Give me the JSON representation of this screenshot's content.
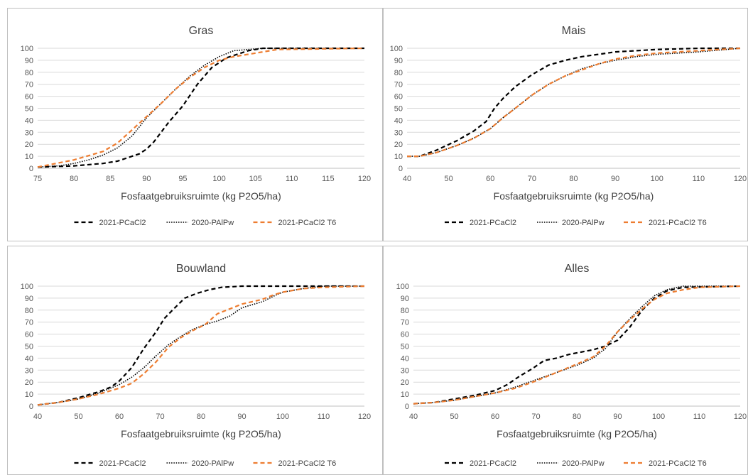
{
  "colors": {
    "pcacl2": "#000000",
    "palpw": "#000000",
    "t6": "#ED7D31"
  },
  "chart_data": [
    {
      "type": "line",
      "title": "Gras",
      "xlabel": "Fosfaatgebruiksruimte (kg P2O5/ha)",
      "xlim": [
        75,
        120
      ],
      "xticks": [
        75,
        80,
        85,
        90,
        95,
        100,
        105,
        110,
        115,
        120
      ],
      "ylim": [
        0,
        100
      ],
      "yticks": [
        0,
        10,
        20,
        30,
        40,
        50,
        60,
        70,
        80,
        90,
        100
      ],
      "legend": "bottom",
      "series": [
        {
          "name": "2021-PCaCl2",
          "style": "dashed",
          "x": [
            75,
            80,
            84,
            86,
            88,
            89,
            90,
            91,
            93,
            95,
            97,
            99,
            101,
            104,
            106,
            120
          ],
          "y": [
            1,
            2,
            4,
            6,
            10,
            12,
            16,
            22,
            38,
            52,
            70,
            84,
            92,
            98,
            100,
            100
          ]
        },
        {
          "name": "2020-PAlPw",
          "style": "dotted",
          "x": [
            75,
            78,
            80,
            82,
            84,
            86,
            88,
            90,
            92,
            94,
            96,
            98,
            100,
            102,
            104,
            106,
            120
          ],
          "y": [
            1,
            2,
            4,
            7,
            11,
            17,
            27,
            42,
            54,
            66,
            77,
            86,
            93,
            98,
            99,
            100,
            100
          ]
        },
        {
          "name": "2021-PCaCl2 T6",
          "style": "dashed",
          "x": [
            75,
            80,
            84,
            86,
            88,
            90,
            92,
            94,
            96,
            98,
            100,
            102,
            104,
            106,
            108,
            120
          ],
          "y": [
            1,
            7,
            14,
            21,
            32,
            43,
            54,
            66,
            76,
            84,
            90,
            93,
            95,
            97,
            99,
            100
          ]
        }
      ]
    },
    {
      "type": "line",
      "title": "Mais",
      "xlabel": "Fosfaatgebruiksruimte (kg P2O5/ha)",
      "xlim": [
        40,
        120
      ],
      "xticks": [
        40,
        50,
        60,
        70,
        80,
        90,
        100,
        110,
        120
      ],
      "ylim": [
        0,
        100
      ],
      "yticks": [
        0,
        10,
        20,
        30,
        40,
        50,
        60,
        70,
        80,
        90,
        100
      ],
      "legend": "bottom",
      "series": [
        {
          "name": "2021-PCaCl2",
          "style": "dashed",
          "x": [
            40,
            43,
            47,
            52,
            56,
            59,
            61,
            63,
            66,
            70,
            74,
            78,
            82,
            86,
            90,
            95,
            100,
            110,
            120
          ],
          "y": [
            10,
            10,
            15,
            23,
            31,
            39,
            50,
            58,
            68,
            78,
            86,
            90,
            93,
            95,
            97,
            98,
            99,
            100,
            100
          ]
        },
        {
          "name": "2020-PAlPw",
          "style": "dotted",
          "x": [
            40,
            43,
            47,
            52,
            56,
            60,
            63,
            66,
            70,
            74,
            78,
            82,
            86,
            90,
            95,
            100,
            110,
            120
          ],
          "y": [
            10,
            10,
            13,
            19,
            25,
            33,
            42,
            50,
            61,
            70,
            77,
            83,
            87,
            90,
            93,
            95,
            97,
            100
          ]
        },
        {
          "name": "2021-PCaCl2 T6",
          "style": "dashed",
          "x": [
            40,
            43,
            47,
            52,
            56,
            60,
            63,
            66,
            70,
            74,
            78,
            82,
            86,
            90,
            95,
            100,
            110,
            120
          ],
          "y": [
            10,
            10,
            13,
            19,
            25,
            33,
            42,
            50,
            61,
            70,
            77,
            82,
            87,
            91,
            94,
            96,
            98,
            100
          ]
        }
      ]
    },
    {
      "type": "line",
      "title": "Bouwland",
      "xlabel": "Fosfaatgebruiksruimte (kg P2O5/ha)",
      "xlim": [
        40,
        120
      ],
      "xticks": [
        40,
        50,
        60,
        70,
        80,
        90,
        100,
        110,
        120
      ],
      "ylim": [
        0,
        100
      ],
      "yticks": [
        0,
        10,
        20,
        30,
        40,
        50,
        60,
        70,
        80,
        90,
        100
      ],
      "legend": "bottom",
      "series": [
        {
          "name": "2021-PCaCl2",
          "style": "dashed",
          "x": [
            40,
            45,
            50,
            55,
            58,
            60,
            63,
            66,
            69,
            71,
            73,
            76,
            79,
            82,
            85,
            90,
            100,
            120
          ],
          "y": [
            1,
            3,
            7,
            12,
            16,
            21,
            32,
            48,
            62,
            73,
            80,
            90,
            94,
            97,
            99,
            100,
            100,
            100
          ]
        },
        {
          "name": "2020-PAlPw",
          "style": "dotted",
          "x": [
            40,
            45,
            50,
            55,
            60,
            63,
            66,
            69,
            72,
            75,
            78,
            81,
            84,
            87,
            90,
            95,
            98,
            100,
            105,
            110,
            120
          ],
          "y": [
            1,
            3,
            6,
            11,
            18,
            24,
            32,
            42,
            51,
            58,
            64,
            68,
            71,
            75,
            82,
            87,
            92,
            95,
            98,
            100,
            100
          ]
        },
        {
          "name": "2021-PCaCl2 T6",
          "style": "dashed",
          "x": [
            40,
            45,
            50,
            55,
            60,
            63,
            66,
            69,
            72,
            75,
            78,
            81,
            84,
            87,
            90,
            95,
            98,
            100,
            105,
            110,
            120
          ],
          "y": [
            1,
            3,
            6,
            10,
            15,
            19,
            27,
            37,
            49,
            57,
            63,
            68,
            77,
            81,
            85,
            89,
            93,
            95,
            98,
            99,
            100
          ]
        }
      ]
    },
    {
      "type": "line",
      "title": "Alles",
      "xlabel": "Fosfaatgebruiksruimte (kg P2O5/ha)",
      "xlim": [
        40,
        120
      ],
      "xticks": [
        40,
        50,
        60,
        70,
        80,
        90,
        100,
        110,
        120
      ],
      "ylim": [
        0,
        100
      ],
      "yticks": [
        0,
        10,
        20,
        30,
        40,
        50,
        60,
        70,
        80,
        90,
        100
      ],
      "legend": "bottom",
      "series": [
        {
          "name": "2021-PCaCl2",
          "style": "dashed",
          "x": [
            40,
            45,
            50,
            55,
            60,
            63,
            66,
            69,
            72,
            75,
            78,
            81,
            84,
            87,
            90,
            93,
            96,
            99,
            102,
            106,
            120
          ],
          "y": [
            2,
            3,
            6,
            9,
            13,
            18,
            25,
            31,
            38,
            40,
            43,
            45,
            47,
            50,
            55,
            66,
            80,
            90,
            96,
            99,
            100
          ]
        },
        {
          "name": "2020-PAlPw",
          "style": "dotted",
          "x": [
            40,
            45,
            50,
            55,
            60,
            65,
            70,
            75,
            80,
            84,
            87,
            90,
            93,
            96,
            99,
            102,
            106,
            120
          ],
          "y": [
            2,
            3,
            5,
            8,
            11,
            16,
            22,
            28,
            34,
            40,
            48,
            62,
            73,
            83,
            92,
            97,
            100,
            100
          ]
        },
        {
          "name": "2021-PCaCl2 T6",
          "style": "dashed",
          "x": [
            40,
            45,
            50,
            55,
            60,
            65,
            70,
            75,
            80,
            84,
            87,
            90,
            93,
            96,
            99,
            102,
            106,
            110,
            120
          ],
          "y": [
            2,
            3,
            5,
            8,
            11,
            15,
            21,
            28,
            35,
            41,
            50,
            62,
            72,
            81,
            89,
            94,
            97,
            99,
            100
          ]
        }
      ]
    }
  ]
}
